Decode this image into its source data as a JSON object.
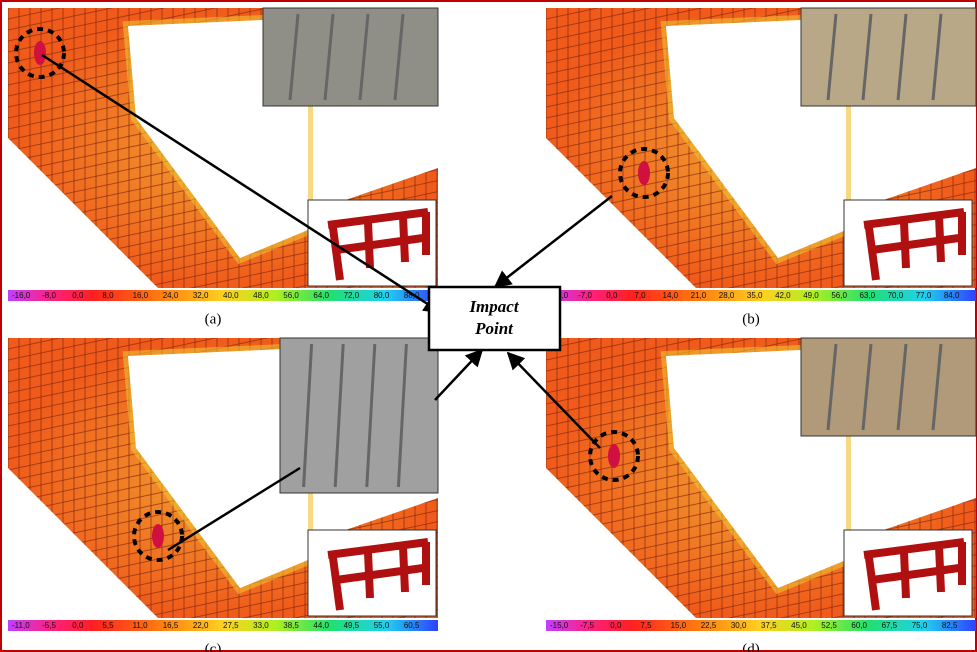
{
  "panels": [
    {
      "label": "(a)",
      "scale": [
        "-16,0",
        "-8,0",
        "0,0",
        "8,0",
        "16,0",
        "24,0",
        "32,0",
        "40,0",
        "48,0",
        "56,0",
        "64,0",
        "72,0",
        "80,0",
        "88,0"
      ]
    },
    {
      "label": "(b)",
      "scale": [
        "-14,0",
        "-7,0",
        "0,0",
        "7,0",
        "14,0",
        "21,0",
        "28,0",
        "35,0",
        "42,0",
        "49,0",
        "56,0",
        "63,0",
        "70,0",
        "77,0",
        "84,0"
      ]
    },
    {
      "label": "(c)",
      "scale": [
        "-11,0",
        "-5,5",
        "0,0",
        "5,5",
        "11,0",
        "16,5",
        "22,0",
        "27,5",
        "33,0",
        "38,5",
        "44,0",
        "49,5",
        "55,0",
        "60,5"
      ]
    },
    {
      "label": "(d)",
      "scale": [
        "-15,0",
        "-7,5",
        "0,0",
        "7,5",
        "15,0",
        "22,5",
        "30,0",
        "37,5",
        "45,0",
        "52,5",
        "60,0",
        "67,5",
        "75,0",
        "82,5"
      ]
    }
  ],
  "callout": {
    "line1": "Impact",
    "line2": "Point"
  }
}
